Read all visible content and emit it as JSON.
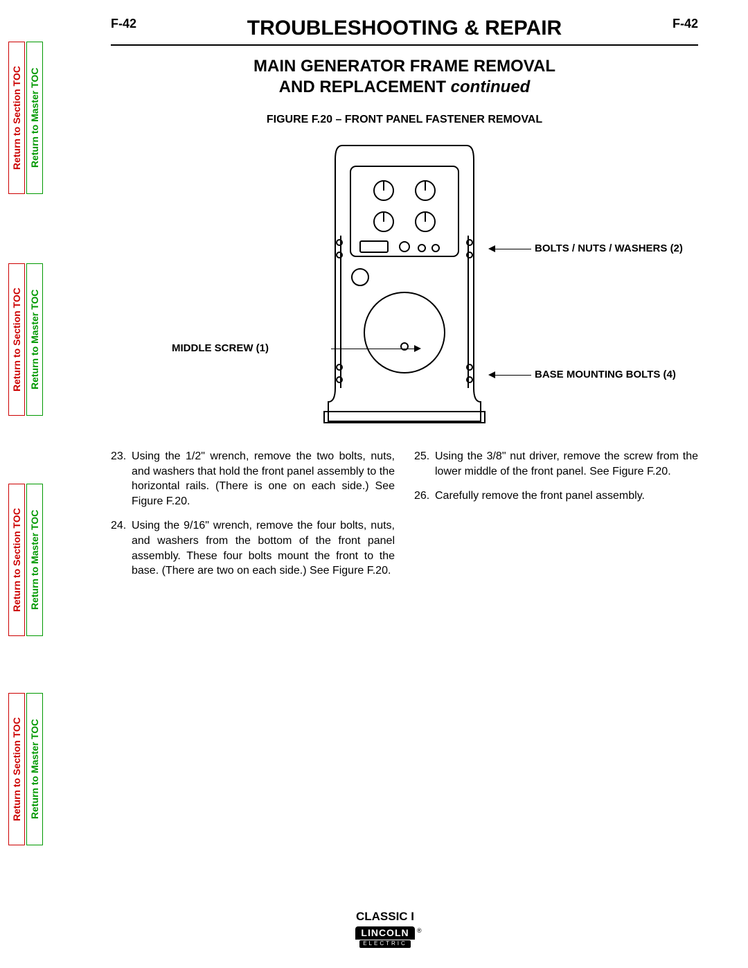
{
  "page_number": "F-42",
  "section_title": "TROUBLESHOOTING & REPAIR",
  "subtitle_line1": "MAIN GENERATOR FRAME REMOVAL",
  "subtitle_line2_a": "AND REPLACEMENT ",
  "subtitle_line2_b": "continued",
  "figure_caption": "FIGURE F.20 – FRONT PANEL FASTENER REMOVAL",
  "callouts": {
    "bolts": "BOLTS / NUTS / WASHERS (2)",
    "middle_screw": "MIDDLE SCREW (1)",
    "base_bolts": "BASE MOUNTING BOLTS (4)"
  },
  "steps_left": [
    {
      "n": "23.",
      "t": "Using the 1/2\" wrench, remove the two bolts, nuts, and washers that hold the front panel assembly to the horizontal rails.  (There is one on each side.)  See Figure F.20."
    },
    {
      "n": "24.",
      "t": "Using the 9/16\" wrench, remove the four bolts, nuts, and washers from the bottom of the front panel assembly.  These four bolts mount the front to the base.  (There are two on each side.) See Figure F.20."
    }
  ],
  "steps_right": [
    {
      "n": "25.",
      "t": "Using the 3/8\" nut driver, remove the screw from the lower middle of the front panel. See Figure F.20."
    },
    {
      "n": "26.",
      "t": "Carefully remove the front panel assembly."
    }
  ],
  "sidebar": {
    "section_label": "Return to Section TOC",
    "master_label": "Return to Master TOC"
  },
  "footer": {
    "model": "CLASSIC I",
    "logo_top": "LINCOLN",
    "logo_bot": "ELECTRIC",
    "reg": "®"
  },
  "colors": {
    "section_tab": "#cc0000",
    "master_tab": "#009900",
    "text": "#000000",
    "bg": "#ffffff"
  }
}
